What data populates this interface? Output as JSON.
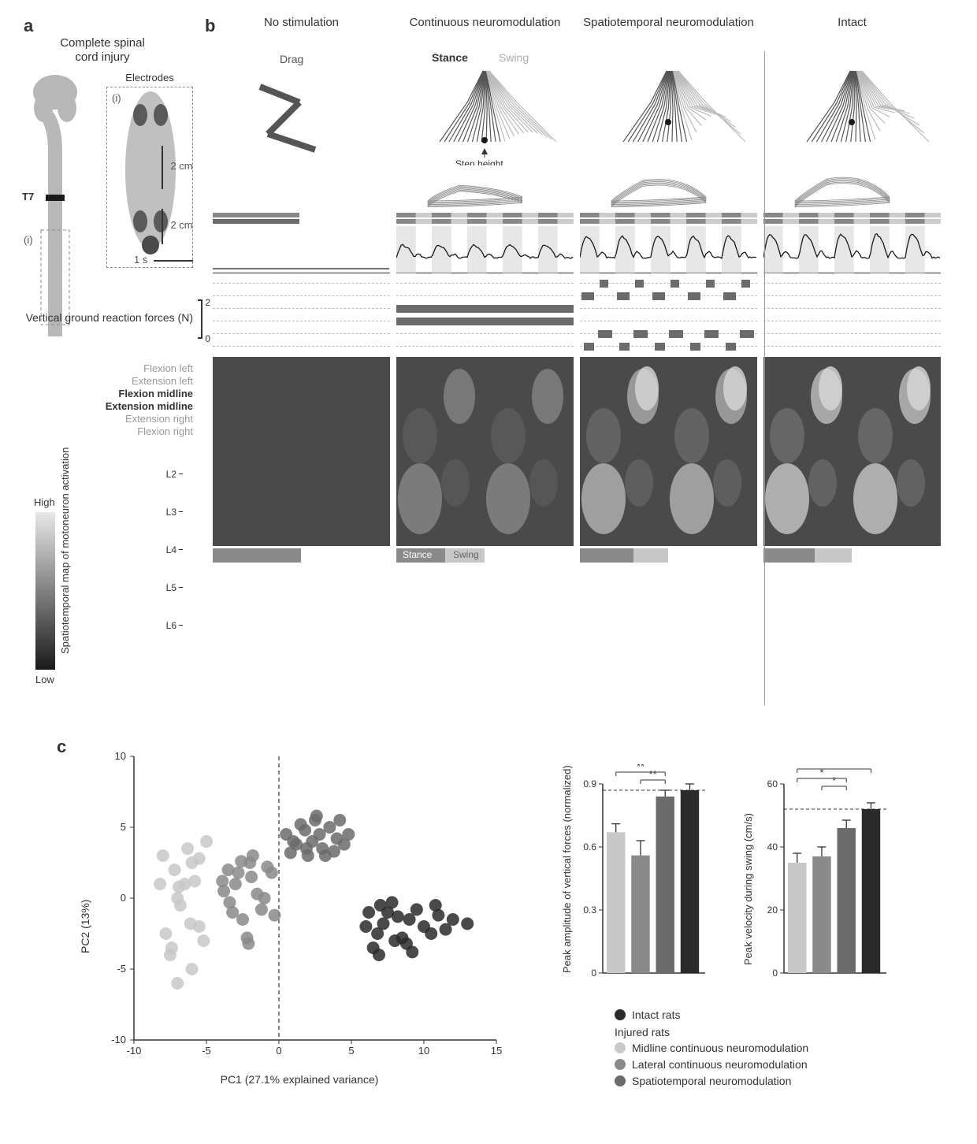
{
  "panel_a": {
    "label": "a",
    "title": "Complete spinal cord injury",
    "t7_label": "T7",
    "inset_label": "(i)",
    "electrodes_label": "Electrodes",
    "spinal_color": "#b8b8b8",
    "lesion_color": "#1a1a1a",
    "electrode_spots": [
      "#6b6b6b",
      "#8a8a8a"
    ]
  },
  "panel_b": {
    "label": "b",
    "columns": [
      {
        "title": "No stimulation",
        "sublabel": "Drag"
      },
      {
        "title": "Continuous neuromodulation",
        "sublabel": ""
      },
      {
        "title": "Spatiotemporal neuromodulation",
        "sublabel": ""
      },
      {
        "title": "Intact",
        "sublabel": ""
      }
    ],
    "stance_label": "Stance",
    "swing_label": "Swing",
    "step_height_label": "Step height",
    "scale_2cm": "2 cm",
    "scale_1s": "1 s",
    "force_label": "Vertical ground reaction forces (N)",
    "force_ticks": [
      "0",
      "2"
    ],
    "stim_row_labels": [
      "Flexion left",
      "Extension left",
      "Flexion midline",
      "Extension midline",
      "Extension right",
      "Flexion right"
    ],
    "stim_row_styles": [
      {
        "color": "#999",
        "weight": "normal"
      },
      {
        "color": "#999",
        "weight": "normal"
      },
      {
        "color": "#333",
        "weight": "bold"
      },
      {
        "color": "#333",
        "weight": "bold"
      },
      {
        "color": "#999",
        "weight": "normal"
      },
      {
        "color": "#999",
        "weight": "normal"
      }
    ],
    "heatmap_label": "Spatiotemporal map of motoneuron activation",
    "heatmap_ticks": [
      "L2",
      "L3",
      "L4",
      "L5",
      "L6"
    ],
    "colorbar": {
      "high": "High",
      "low": "Low",
      "top_color": "#e8e8e8",
      "bottom_color": "#1a1a1a"
    },
    "stance_color": "#8a8a8a",
    "swing_color": "#c8c8c8",
    "stim_block_color": "#6b6b6b",
    "continuous_color": "#6b6b6b",
    "force_colors": {
      "line": "#1a1a1a",
      "bg_stance": "#d0d0d0"
    },
    "heatmap_colors": {
      "bg": "#4a4a4a",
      "low": "#3a3a3a",
      "mid": "#7a7a7a",
      "high": "#d8d8d8"
    },
    "gait_stance_color": "#888",
    "gait_swing_color": "#ccc",
    "stick_color": "#555",
    "stick_swing_color": "#bbb"
  },
  "panel_c": {
    "label": "c",
    "scatter": {
      "xlabel": "PC1 (27.1% explained variance)",
      "ylabel": "PC2 (13%)",
      "xlim": [
        -10,
        15
      ],
      "ylim": [
        -10,
        10
      ],
      "xticks": [
        -10,
        -5,
        0,
        5,
        10,
        15
      ],
      "yticks": [
        -10,
        -5,
        0,
        5,
        10
      ],
      "groups": [
        {
          "name": "midline",
          "color": "#c8c8c8",
          "points": [
            [
              -7,
              -6
            ],
            [
              -6.5,
              1
            ],
            [
              -8,
              3
            ],
            [
              -7,
              0
            ],
            [
              -6,
              2.5
            ],
            [
              -5.5,
              -2
            ],
            [
              -7.5,
              -4
            ],
            [
              -6,
              -5
            ],
            [
              -5,
              4
            ],
            [
              -6.8,
              -0.5
            ],
            [
              -7.2,
              2
            ],
            [
              -5.8,
              1.2
            ],
            [
              -6.3,
              3.5
            ],
            [
              -7.8,
              -2.5
            ],
            [
              -5.2,
              -3
            ],
            [
              -6.9,
              0.8
            ],
            [
              -8.2,
              1
            ],
            [
              -5.5,
              2.8
            ],
            [
              -6.1,
              -1.8
            ],
            [
              -7.4,
              -3.5
            ]
          ]
        },
        {
          "name": "lateral",
          "color": "#8a8a8a",
          "points": [
            [
              -3,
              1
            ],
            [
              -2,
              2.5
            ],
            [
              -1,
              0
            ],
            [
              -2.5,
              -1.5
            ],
            [
              -3.5,
              2
            ],
            [
              -1.8,
              3
            ],
            [
              -2.2,
              -2.8
            ],
            [
              -0.5,
              1.8
            ],
            [
              -3.8,
              0.5
            ],
            [
              -1.2,
              -0.8
            ],
            [
              -2.8,
              1.8
            ],
            [
              -0.8,
              2.2
            ],
            [
              -3.2,
              -1
            ],
            [
              -1.5,
              0.3
            ],
            [
              -2.6,
              2.6
            ],
            [
              -3.9,
              1.2
            ],
            [
              -0.3,
              -1.2
            ],
            [
              -2.1,
              -3.2
            ],
            [
              -1.9,
              1.5
            ],
            [
              -3.4,
              -0.3
            ]
          ]
        },
        {
          "name": "spatiotemporal",
          "color": "#6b6b6b",
          "points": [
            [
              1,
              4
            ],
            [
              2.5,
              5.5
            ],
            [
              3,
              3.5
            ],
            [
              1.8,
              4.8
            ],
            [
              4,
              4.2
            ],
            [
              2,
              3
            ],
            [
              3.5,
              5
            ],
            [
              0.8,
              3.2
            ],
            [
              2.8,
              4.5
            ],
            [
              4.5,
              3.8
            ],
            [
              1.5,
              5.2
            ],
            [
              3.2,
              3
            ],
            [
              2.3,
              4
            ],
            [
              4.2,
              5.5
            ],
            [
              0.5,
              4.5
            ],
            [
              3.8,
              3.3
            ],
            [
              1.2,
              3.8
            ],
            [
              2.6,
              5.8
            ],
            [
              4.8,
              4.5
            ],
            [
              1.9,
              3.5
            ]
          ]
        },
        {
          "name": "intact",
          "color": "#2a2a2a",
          "points": [
            [
              6,
              -2
            ],
            [
              7.5,
              -1
            ],
            [
              8,
              -3
            ],
            [
              6.8,
              -2.5
            ],
            [
              9,
              -1.5
            ],
            [
              7,
              -0.5
            ],
            [
              8.5,
              -2.8
            ],
            [
              10,
              -2
            ],
            [
              6.5,
              -3.5
            ],
            [
              9.5,
              -0.8
            ],
            [
              7.2,
              -1.8
            ],
            [
              8.8,
              -3.2
            ],
            [
              11,
              -1.2
            ],
            [
              6.2,
              -1
            ],
            [
              10.5,
              -2.5
            ],
            [
              7.8,
              -0.3
            ],
            [
              9.2,
              -3.8
            ],
            [
              12,
              -1.5
            ],
            [
              8.2,
              -1.3
            ],
            [
              11.5,
              -2.2
            ],
            [
              6.9,
              -4
            ],
            [
              10.8,
              -0.5
            ],
            [
              13,
              -1.8
            ]
          ]
        }
      ]
    },
    "bar1": {
      "ylabel": "Peak amplitude of vertical forces (normalized)",
      "ylim": [
        0,
        0.9
      ],
      "yticks": [
        0,
        0.3,
        0.6,
        0.9
      ],
      "bars": [
        {
          "val": 0.67,
          "err": 0.04,
          "color": "#c8c8c8"
        },
        {
          "val": 0.56,
          "err": 0.07,
          "color": "#8a8a8a"
        },
        {
          "val": 0.84,
          "err": 0.03,
          "color": "#6b6b6b"
        },
        {
          "val": 0.87,
          "err": 0.03,
          "color": "#2a2a2a"
        }
      ],
      "sig": "**",
      "ref_line": 0.87
    },
    "bar2": {
      "ylabel": "Peak velocity during swing (cm/s)",
      "ylim": [
        0,
        60
      ],
      "yticks": [
        0,
        20,
        40,
        60
      ],
      "bars": [
        {
          "val": 35,
          "err": 3,
          "color": "#c8c8c8"
        },
        {
          "val": 37,
          "err": 3,
          "color": "#8a8a8a"
        },
        {
          "val": 46,
          "err": 2.5,
          "color": "#6b6b6b"
        },
        {
          "val": 52,
          "err": 2,
          "color": "#2a2a2a"
        }
      ],
      "sig1": "*",
      "sig2": "**",
      "ref_line": 52
    },
    "legend": {
      "intact": "Intact rats",
      "injured_header": "Injured rats",
      "items": [
        {
          "label": "Midline continuous neuromodulation",
          "color": "#c8c8c8"
        },
        {
          "label": "Lateral continuous neuromodulation",
          "color": "#8a8a8a"
        },
        {
          "label": "Spatiotemporal neuromodulation",
          "color": "#6b6b6b"
        }
      ],
      "intact_color": "#2a2a2a"
    }
  }
}
